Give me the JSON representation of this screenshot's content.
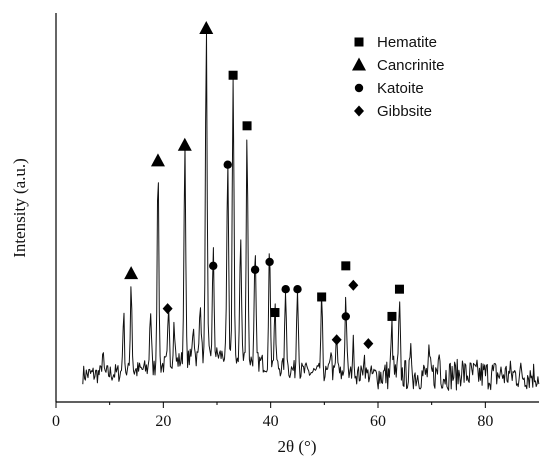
{
  "chart_data": {
    "type": "line",
    "title": "",
    "xlabel": "2θ (°)",
    "ylabel": "Intensity (a.u.)",
    "xlim": [
      0,
      90
    ],
    "xticks": [
      0,
      20,
      40,
      60,
      80
    ],
    "yticks_shown": false,
    "ylim": [
      0,
      100
    ],
    "grid": false,
    "legend": {
      "placement": "top-right",
      "entries": [
        {
          "name": "Hematite",
          "marker": "square"
        },
        {
          "name": "Cancrinite",
          "marker": "triangle"
        },
        {
          "name": "Katoite",
          "marker": "circle"
        },
        {
          "name": "Gibbsite",
          "marker": "diamond"
        }
      ]
    },
    "background": {
      "base": 7,
      "noise": 2.5,
      "hump_center": 30,
      "hump_width": 12,
      "hump_height": 5
    },
    "peaks": [
      {
        "x": 8.7,
        "y": 12
      },
      {
        "x": 12.6,
        "y": 22
      },
      {
        "x": 14.0,
        "y": 30
      },
      {
        "x": 17.6,
        "y": 22
      },
      {
        "x": 19.0,
        "y": 58
      },
      {
        "x": 21.0,
        "y": 20
      },
      {
        "x": 22.0,
        "y": 17
      },
      {
        "x": 24.0,
        "y": 62
      },
      {
        "x": 25.6,
        "y": 16
      },
      {
        "x": 26.9,
        "y": 22
      },
      {
        "x": 28.0,
        "y": 91
      },
      {
        "x": 29.3,
        "y": 33
      },
      {
        "x": 32.0,
        "y": 56
      },
      {
        "x": 33.0,
        "y": 78
      },
      {
        "x": 34.4,
        "y": 38
      },
      {
        "x": 35.6,
        "y": 65
      },
      {
        "x": 37.1,
        "y": 34
      },
      {
        "x": 39.8,
        "y": 37
      },
      {
        "x": 40.8,
        "y": 21
      },
      {
        "x": 42.8,
        "y": 27
      },
      {
        "x": 45.0,
        "y": 30
      },
      {
        "x": 49.5,
        "y": 25
      },
      {
        "x": 51.2,
        "y": 14
      },
      {
        "x": 52.3,
        "y": 16
      },
      {
        "x": 54.0,
        "y": 27
      },
      {
        "x": 55.4,
        "y": 15
      },
      {
        "x": 57.4,
        "y": 12
      },
      {
        "x": 62.6,
        "y": 19
      },
      {
        "x": 64.0,
        "y": 23
      },
      {
        "x": 66.2,
        "y": 12
      },
      {
        "x": 69.5,
        "y": 11
      },
      {
        "x": 71.4,
        "y": 13
      },
      {
        "x": 75.6,
        "y": 9
      }
    ],
    "series": [
      {
        "name": "Hematite",
        "marker": "square",
        "x": [
          33.0,
          35.6,
          40.8,
          49.5,
          54.0,
          62.6,
          64.0
        ],
        "y": [
          84,
          71,
          23,
          27,
          35,
          22,
          29
        ]
      },
      {
        "name": "Cancrinite",
        "marker": "triangle",
        "x": [
          14.0,
          19.0,
          24.0,
          28.0
        ],
        "y": [
          33,
          62,
          66,
          96
        ]
      },
      {
        "name": "Katoite",
        "marker": "circle",
        "x": [
          29.3,
          32.0,
          37.1,
          39.8,
          42.8,
          45.0,
          54.0
        ],
        "y": [
          35,
          61,
          34,
          36,
          29,
          29,
          22
        ]
      },
      {
        "name": "Gibbsite",
        "marker": "diamond",
        "x": [
          20.8,
          52.3,
          55.4,
          58.2
        ],
        "y": [
          24,
          16,
          30,
          15
        ]
      }
    ]
  }
}
